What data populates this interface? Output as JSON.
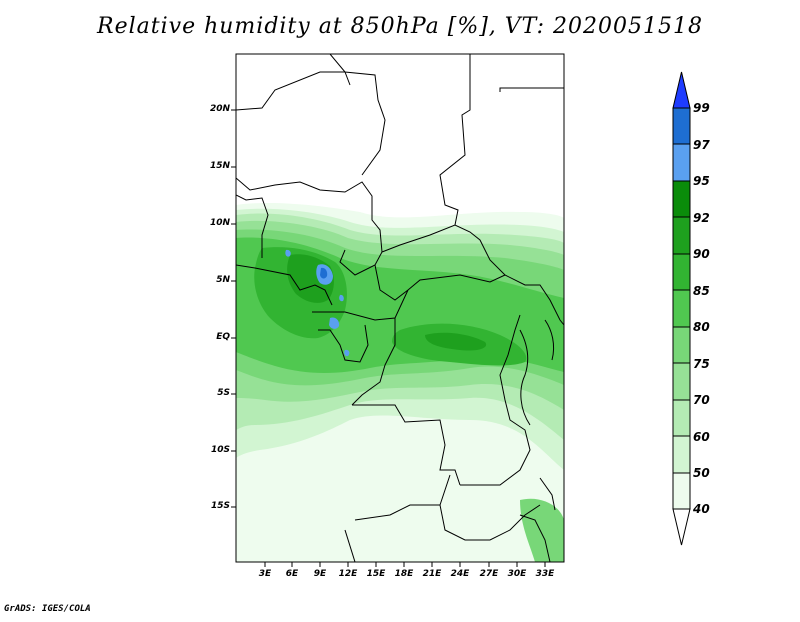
{
  "title": "Relative humidity at 850hPa [%], VT: 2020051518",
  "footer": "GrADS: IGES/COLA",
  "map": {
    "y_ticks": [
      "20N",
      "15N",
      "10N",
      "5N",
      "EQ",
      "5S",
      "10S",
      "15S"
    ],
    "x_ticks": [
      "3E",
      "6E",
      "9E",
      "12E",
      "15E",
      "18E",
      "21E",
      "24E",
      "27E",
      "30E",
      "33E"
    ]
  },
  "colorbar": {
    "labels": [
      "99",
      "97",
      "95",
      "92",
      "90",
      "85",
      "80",
      "75",
      "70",
      "60",
      "50",
      "40"
    ],
    "colors": [
      "#1e3cff",
      "#1e6ed2",
      "#5aa0f0",
      "#0a8c0a",
      "#1ea01e",
      "#32b432",
      "#50c850",
      "#78d778",
      "#96e196",
      "#b4ebb4",
      "#d2f5d2",
      "#eefcee"
    ]
  }
}
